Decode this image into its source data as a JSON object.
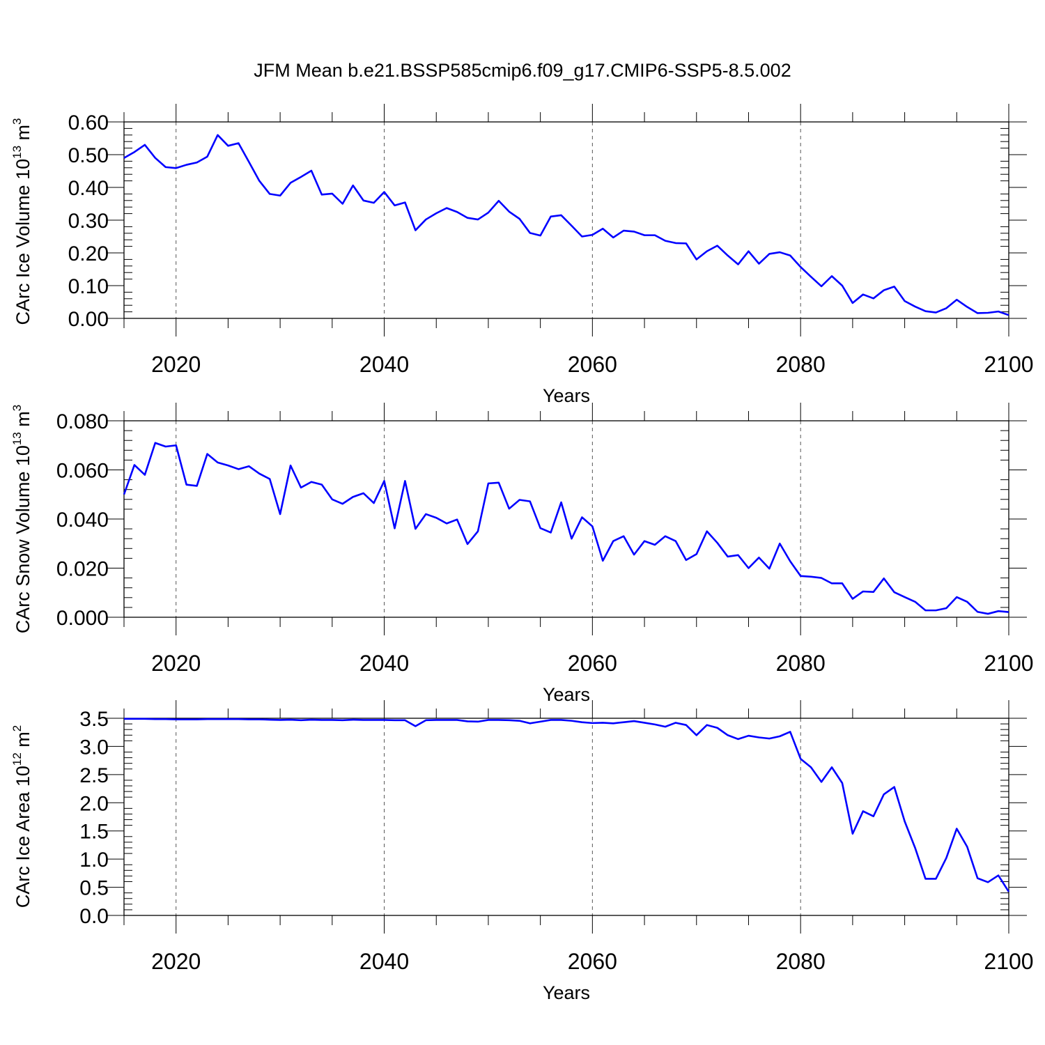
{
  "title": "JFM Mean b.e21.BSSP585cmip6.f09_g17.CMIP6-SSP5-8.5.002",
  "chart_data": [
    {
      "type": "line",
      "ylabel": "CArc Ice Volume 10",
      "ylabel_exp": "13",
      "ylabel_unit": " m",
      "ylabel_unit_exp": "3",
      "xlabel": "Years",
      "xlim": [
        2015,
        2100
      ],
      "ylim": [
        0,
        0.6
      ],
      "yticks": [
        0,
        0.1,
        0.2,
        0.3,
        0.4,
        0.5,
        0.6
      ],
      "ytick_labels": [
        "0.00",
        "0.10",
        "0.20",
        "0.30",
        "0.40",
        "0.50",
        "0.60"
      ],
      "xticks": [
        2020,
        2040,
        2060,
        2080,
        2100
      ],
      "xtick_labels": [
        "2020",
        "2040",
        "2060",
        "2080",
        "2100"
      ],
      "grid": "vertical dashed at labeled years",
      "color": "#0000ff",
      "x_start": 2015,
      "values": [
        0.49,
        0.508,
        0.53,
        0.49,
        0.462,
        0.459,
        0.469,
        0.476,
        0.494,
        0.56,
        0.527,
        0.535,
        0.478,
        0.42,
        0.38,
        0.375,
        0.414,
        0.432,
        0.451,
        0.378,
        0.381,
        0.35,
        0.406,
        0.36,
        0.353,
        0.386,
        0.345,
        0.354,
        0.269,
        0.302,
        0.321,
        0.337,
        0.325,
        0.307,
        0.302,
        0.323,
        0.359,
        0.326,
        0.304,
        0.261,
        0.253,
        0.311,
        0.315,
        0.283,
        0.25,
        0.255,
        0.274,
        0.247,
        0.268,
        0.265,
        0.254,
        0.254,
        0.237,
        0.23,
        0.229,
        0.18,
        0.205,
        0.222,
        0.192,
        0.165,
        0.205,
        0.167,
        0.197,
        0.202,
        0.192,
        0.157,
        0.127,
        0.098,
        0.129,
        0.1,
        0.047,
        0.073,
        0.061,
        0.086,
        0.097,
        0.053,
        0.036,
        0.022,
        0.018,
        0.031,
        0.057,
        0.035,
        0.016,
        0.017,
        0.021,
        0.01
      ]
    },
    {
      "type": "line",
      "ylabel": "CArc Snow Volume 10",
      "ylabel_exp": "13",
      "ylabel_unit": " m",
      "ylabel_unit_exp": "3",
      "xlabel": "Years",
      "xlim": [
        2015,
        2100
      ],
      "ylim": [
        0,
        0.08
      ],
      "yticks": [
        0,
        0.02,
        0.04,
        0.06,
        0.08
      ],
      "ytick_labels": [
        "0.000",
        "0.020",
        "0.040",
        "0.060",
        "0.080"
      ],
      "xticks": [
        2020,
        2040,
        2060,
        2080,
        2100
      ],
      "xtick_labels": [
        "2020",
        "2040",
        "2060",
        "2080",
        "2100"
      ],
      "grid": "vertical dashed at labeled years",
      "color": "#0000ff",
      "x_start": 2015,
      "values": [
        0.05,
        0.062,
        0.058,
        0.071,
        0.0695,
        0.07,
        0.054,
        0.0535,
        0.0665,
        0.063,
        0.0618,
        0.0603,
        0.0615,
        0.0585,
        0.0563,
        0.042,
        0.0618,
        0.0528,
        0.0551,
        0.054,
        0.048,
        0.0462,
        0.049,
        0.0505,
        0.0465,
        0.0555,
        0.0362,
        0.0555,
        0.036,
        0.042,
        0.0405,
        0.0382,
        0.0398,
        0.0298,
        0.035,
        0.0545,
        0.0548,
        0.0442,
        0.0478,
        0.0472,
        0.0363,
        0.0345,
        0.0468,
        0.032,
        0.0407,
        0.037,
        0.023,
        0.031,
        0.033,
        0.0255,
        0.031,
        0.0295,
        0.033,
        0.031,
        0.0233,
        0.0257,
        0.035,
        0.0303,
        0.0247,
        0.0253,
        0.02,
        0.0243,
        0.0198,
        0.03,
        0.0228,
        0.0168,
        0.0165,
        0.016,
        0.0138,
        0.0138,
        0.0075,
        0.0105,
        0.0103,
        0.0158,
        0.0102,
        0.0082,
        0.0063,
        0.0028,
        0.0028,
        0.0037,
        0.0082,
        0.0063,
        0.0022,
        0.0014,
        0.0025,
        0.0021
      ]
    },
    {
      "type": "line",
      "ylabel": "CArc Ice Area 10",
      "ylabel_exp": "12",
      "ylabel_unit": " m",
      "ylabel_unit_exp": "2",
      "xlabel": "Years",
      "xlim": [
        2015,
        2100
      ],
      "ylim": [
        0,
        3.5
      ],
      "yticks": [
        0,
        0.5,
        1.0,
        1.5,
        2.0,
        2.5,
        3.0,
        3.5
      ],
      "ytick_labels": [
        "0.0",
        "0.5",
        "1.0",
        "1.5",
        "2.0",
        "2.5",
        "3.0",
        "3.5"
      ],
      "xticks": [
        2020,
        2040,
        2060,
        2080,
        2100
      ],
      "xtick_labels": [
        "2020",
        "2040",
        "2060",
        "2080",
        "2100"
      ],
      "grid": "vertical dashed at labeled years",
      "color": "#0000ff",
      "x_start": 2015,
      "values": [
        3.49,
        3.49,
        3.49,
        3.485,
        3.485,
        3.48,
        3.48,
        3.48,
        3.485,
        3.485,
        3.485,
        3.485,
        3.48,
        3.48,
        3.475,
        3.47,
        3.475,
        3.465,
        3.475,
        3.47,
        3.47,
        3.465,
        3.475,
        3.47,
        3.47,
        3.47,
        3.465,
        3.465,
        3.36,
        3.465,
        3.47,
        3.47,
        3.47,
        3.445,
        3.44,
        3.47,
        3.47,
        3.465,
        3.455,
        3.41,
        3.44,
        3.47,
        3.47,
        3.455,
        3.43,
        3.415,
        3.42,
        3.41,
        3.43,
        3.45,
        3.42,
        3.39,
        3.35,
        3.42,
        3.38,
        3.2,
        3.38,
        3.33,
        3.2,
        3.13,
        3.19,
        3.16,
        3.14,
        3.18,
        3.26,
        2.78,
        2.63,
        2.37,
        2.63,
        2.35,
        1.45,
        1.85,
        1.76,
        2.15,
        2.28,
        1.67,
        1.2,
        0.65,
        0.65,
        1.02,
        1.54,
        1.22,
        0.66,
        0.59,
        0.71,
        0.42
      ]
    }
  ]
}
